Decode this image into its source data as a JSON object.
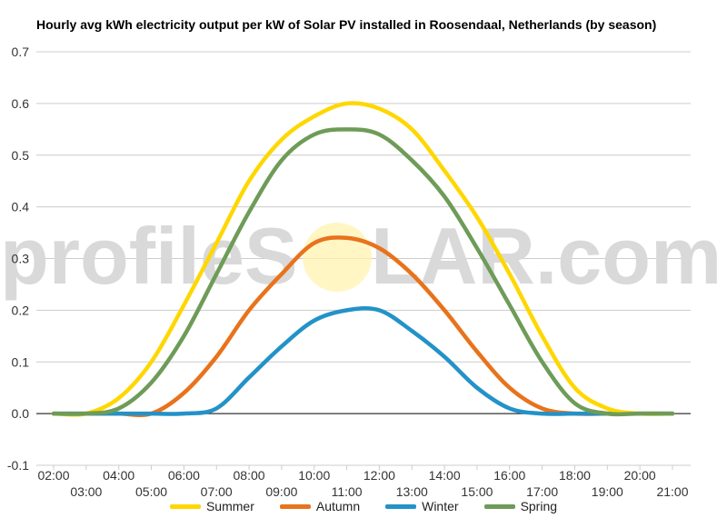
{
  "chart_data": {
    "type": "line",
    "title": "Hourly avg kWh electricity output per kW of Solar PV installed in Roosendaal, Netherlands (by season)",
    "xlabel": "",
    "ylabel": "",
    "x": [
      "02:00",
      "03:00",
      "04:00",
      "05:00",
      "06:00",
      "07:00",
      "08:00",
      "09:00",
      "10:00",
      "11:00",
      "12:00",
      "13:00",
      "14:00",
      "15:00",
      "16:00",
      "17:00",
      "18:00",
      "19:00",
      "20:00",
      "21:00"
    ],
    "ylim": [
      -0.1,
      0.7
    ],
    "yticks": [
      "-0.1",
      "0.0",
      "0.1",
      "0.2",
      "0.3",
      "0.4",
      "0.5",
      "0.6",
      "0.7"
    ],
    "grid": true,
    "legend_position": "bottom",
    "series": [
      {
        "name": "Summer",
        "color": "#FFD700",
        "values": [
          0.0,
          0.0,
          0.03,
          0.1,
          0.21,
          0.33,
          0.45,
          0.53,
          0.575,
          0.6,
          0.59,
          0.55,
          0.47,
          0.38,
          0.27,
          0.15,
          0.05,
          0.01,
          0.0,
          0.0
        ]
      },
      {
        "name": "Autumn",
        "color": "#E8731C",
        "values": [
          0.0,
          0.0,
          0.0,
          0.0,
          0.04,
          0.11,
          0.2,
          0.27,
          0.33,
          0.34,
          0.32,
          0.27,
          0.2,
          0.12,
          0.05,
          0.01,
          0.0,
          0.0,
          0.0,
          0.0
        ]
      },
      {
        "name": "Winter",
        "color": "#2392C8",
        "values": [
          0.0,
          0.0,
          0.0,
          0.0,
          0.0,
          0.01,
          0.07,
          0.13,
          0.18,
          0.2,
          0.2,
          0.16,
          0.11,
          0.05,
          0.01,
          0.0,
          0.0,
          0.0,
          0.0,
          0.0
        ]
      },
      {
        "name": "Spring",
        "color": "#6E9C58",
        "values": [
          0.0,
          0.0,
          0.01,
          0.06,
          0.15,
          0.27,
          0.39,
          0.49,
          0.54,
          0.55,
          0.54,
          0.49,
          0.42,
          0.32,
          0.21,
          0.1,
          0.02,
          0.0,
          0.0,
          0.0
        ]
      }
    ]
  },
  "watermark": {
    "text_before": "profileS",
    "text_after": "LAR.com"
  }
}
